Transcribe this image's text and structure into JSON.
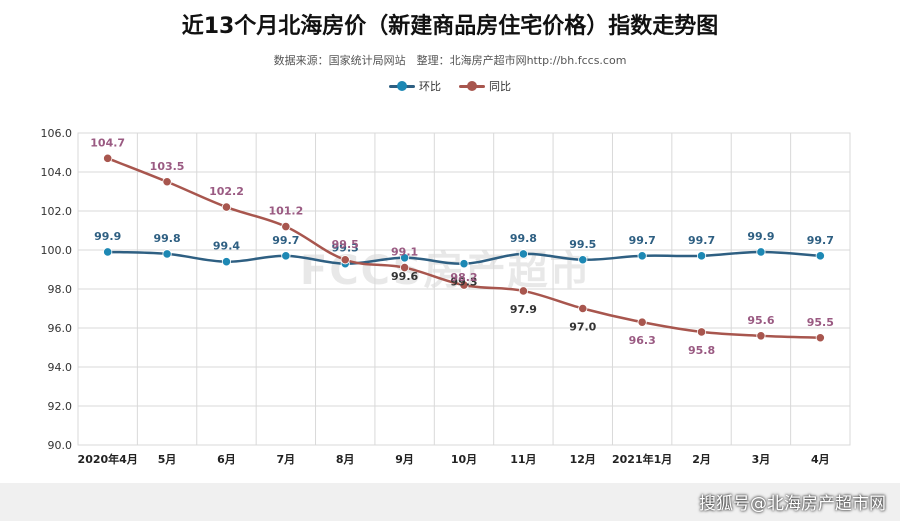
{
  "header": {
    "title": "近13个月北海房价（新建商品房住宅价格）指数走势图",
    "subtitle": "数据来源：国家统计局网站　整理：北海房产超市网http://bh.fccs.com"
  },
  "colors": {
    "huanbi": "#2e5f82",
    "huanbi_dot": "#1d88b4",
    "tongbi": "#2e5f82",
    "tongbi_line": "#a8564e",
    "tongbi_label": "#9a5a82",
    "grid": "#d9d9d9"
  },
  "watermark": "FCCS房产超市",
  "footer": {
    "source_mark": "搜狐号@北海房产超市网"
  },
  "chart_data": {
    "type": "line",
    "title": "近13个月北海房价（新建商品房住宅价格）指数走势图",
    "categories": [
      "2020年4月",
      "5月",
      "6月",
      "7月",
      "8月",
      "9月",
      "10月",
      "11月",
      "12月",
      "2021年1月",
      "2月",
      "3月",
      "4月"
    ],
    "series": [
      {
        "name": "环比",
        "values": [
          99.9,
          99.8,
          99.4,
          99.7,
          99.3,
          99.6,
          99.3,
          99.8,
          99.5,
          99.7,
          99.7,
          99.9,
          99.7
        ]
      },
      {
        "name": "同比",
        "values": [
          104.7,
          103.5,
          102.2,
          101.2,
          99.5,
          99.1,
          98.2,
          97.9,
          97.0,
          96.3,
          95.8,
          95.6,
          95.5
        ]
      }
    ],
    "ylim": [
      90.0,
      106.0
    ],
    "yticks": [
      "90.0",
      "92.0",
      "94.0",
      "96.0",
      "98.0",
      "100.0",
      "102.0",
      "104.0",
      "106.0"
    ],
    "grid": true,
    "legend": "top-center",
    "xlabel": "",
    "ylabel": ""
  }
}
